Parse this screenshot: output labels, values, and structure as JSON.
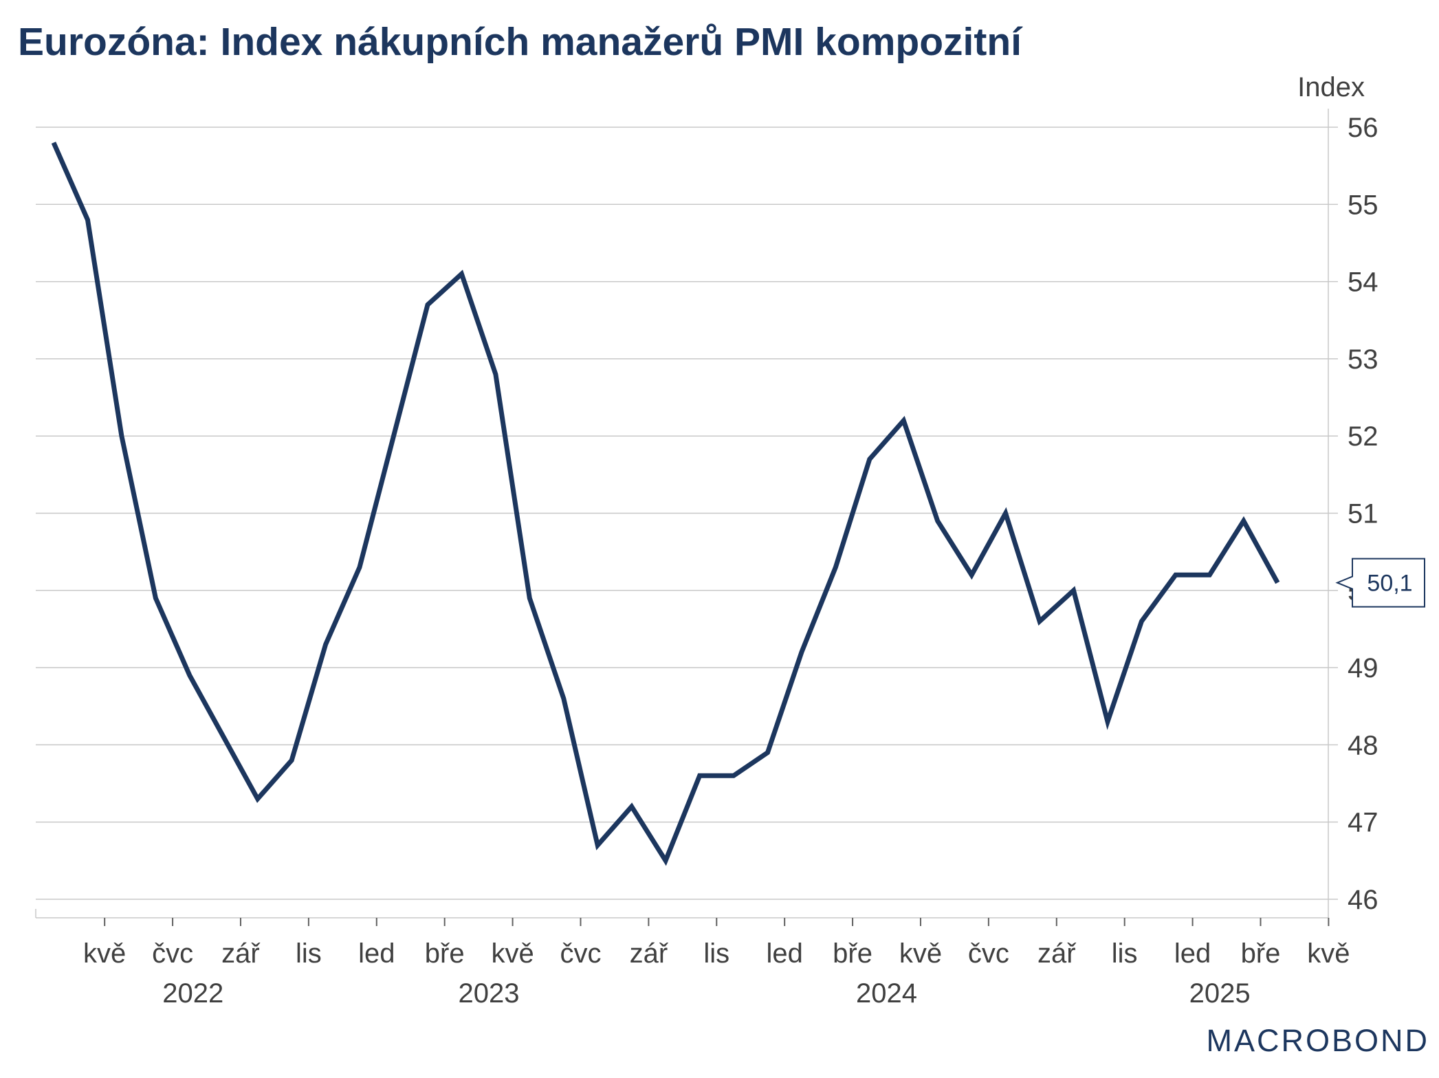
{
  "title": "Eurozóna: Index nákupních manažerů PMI kompozitní",
  "logo": "MACROBOND",
  "colors": {
    "line": "#1c365e",
    "grid": "#c8c8c8",
    "axis_text": "#404040",
    "title": "#1c365e"
  },
  "chart_data": {
    "type": "line",
    "title": "Eurozóna: Index nákupních manažerů PMI kompozitní",
    "ylabel": "Index",
    "ylim": [
      46,
      56
    ],
    "yticks": [
      "46",
      "47",
      "48",
      "49",
      "50",
      "51",
      "52",
      "53",
      "54",
      "55",
      "56"
    ],
    "grid": true,
    "y_axis_position": "right",
    "x_month_labels": [
      "kvě",
      "čvc",
      "zář",
      "lis",
      "led",
      "bře",
      "kvě",
      "čvc",
      "zář",
      "lis",
      "led",
      "bře",
      "kvě",
      "čvc",
      "zář",
      "lis",
      "led",
      "bře",
      "kvě"
    ],
    "x_year_labels": [
      "2022",
      "2023",
      "2024",
      "2025"
    ],
    "x": [
      "2022-04",
      "2022-05",
      "2022-06",
      "2022-07",
      "2022-08",
      "2022-09",
      "2022-10",
      "2022-11",
      "2022-12",
      "2023-01",
      "2023-02",
      "2023-03",
      "2023-04",
      "2023-05",
      "2023-06",
      "2023-07",
      "2023-08",
      "2023-09",
      "2023-10",
      "2023-11",
      "2023-12",
      "2024-01",
      "2024-02",
      "2024-03",
      "2024-04",
      "2024-05",
      "2024-06",
      "2024-07",
      "2024-08",
      "2024-09",
      "2024-10",
      "2024-11",
      "2024-12",
      "2025-01",
      "2025-02",
      "2025-03",
      "2025-04"
    ],
    "series": [
      {
        "values": [
          55.8,
          54.8,
          52.0,
          49.9,
          48.9,
          48.1,
          47.3,
          47.8,
          49.3,
          50.3,
          52.0,
          53.7,
          54.1,
          52.8,
          49.9,
          48.6,
          46.7,
          47.2,
          46.5,
          47.6,
          47.6,
          47.9,
          49.2,
          50.3,
          51.7,
          52.2,
          50.9,
          50.2,
          51.0,
          49.6,
          50.0,
          48.3,
          49.6,
          50.2,
          50.2,
          50.9,
          50.1
        ]
      }
    ],
    "last_value_label": "50,1"
  }
}
